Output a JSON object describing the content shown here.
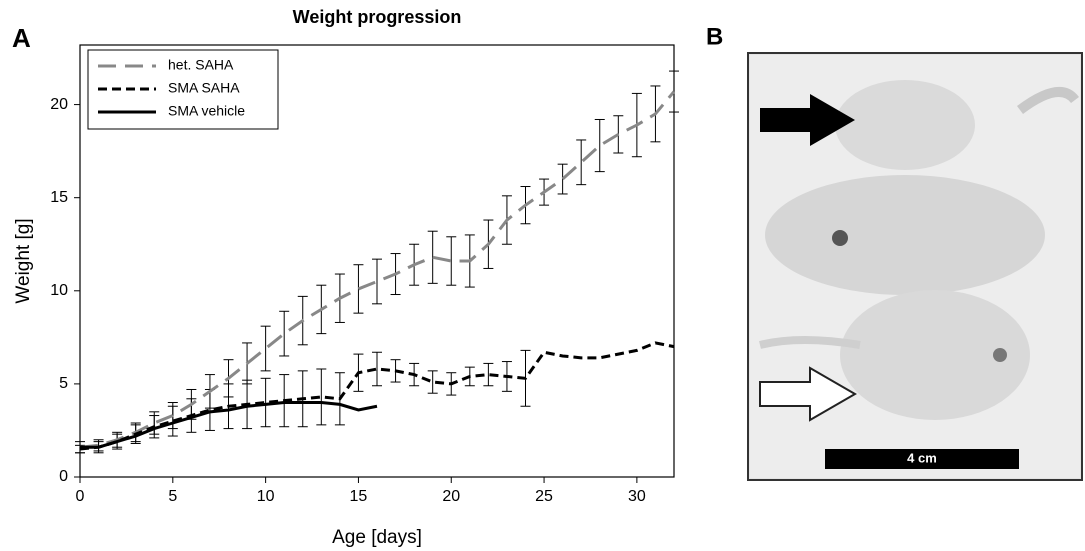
{
  "panel_labels": [
    "A",
    "B"
  ],
  "photo": {
    "scale_label": "4 cm"
  },
  "chart_data": {
    "type": "line",
    "title": "Weight progression",
    "x_label": "Age [days]",
    "y_label": "Weight [g]",
    "xlim": [
      0,
      32
    ],
    "ylim": [
      0,
      23.2
    ],
    "xticks": [
      0,
      5,
      10,
      15,
      20,
      25,
      30
    ],
    "yticks": [
      0,
      5,
      10,
      15,
      20
    ],
    "legend": "top-left",
    "x": [
      0,
      1,
      2,
      3,
      4,
      5,
      6,
      7,
      8,
      9,
      10,
      11,
      12,
      13,
      14,
      15,
      16,
      17,
      18,
      19,
      20,
      21,
      22,
      23,
      24,
      25,
      26,
      27,
      28,
      29,
      30,
      31,
      32
    ],
    "series": [
      {
        "name": "het. SAHA",
        "color": "#888888",
        "dash": "18 9",
        "values": [
          1.6,
          1.7,
          2.0,
          2.4,
          2.9,
          3.3,
          3.9,
          4.6,
          5.3,
          6.1,
          6.9,
          7.7,
          8.4,
          9.0,
          9.6,
          10.1,
          10.5,
          10.9,
          11.4,
          11.8,
          11.6,
          11.6,
          12.5,
          13.8,
          14.6,
          15.3,
          16.0,
          16.9,
          17.8,
          18.4,
          18.9,
          19.5,
          20.7
        ],
        "errors": [
          0.3,
          0.3,
          0.4,
          0.5,
          0.6,
          0.7,
          0.8,
          0.9,
          1.0,
          1.1,
          1.2,
          1.2,
          1.3,
          1.3,
          1.3,
          1.3,
          1.2,
          1.1,
          1.1,
          1.4,
          1.3,
          1.4,
          1.3,
          1.3,
          1.0,
          0.7,
          0.8,
          1.2,
          1.4,
          1.0,
          1.7,
          1.5,
          1.1
        ]
      },
      {
        "name": "SMA SAHA",
        "color": "#000000",
        "dash": "9 5",
        "values": [
          1.5,
          1.6,
          1.9,
          2.3,
          2.7,
          3.0,
          3.3,
          3.6,
          3.8,
          3.9,
          4.0,
          4.1,
          4.2,
          4.3,
          4.2,
          5.6,
          5.8,
          5.7,
          5.5,
          5.1,
          5.0,
          5.4,
          5.5,
          5.4,
          5.3,
          6.7,
          6.5,
          6.4,
          6.4,
          6.6,
          6.8,
          7.2,
          7.0
        ],
        "errors": [
          0.2,
          0.3,
          0.4,
          0.5,
          0.6,
          0.8,
          0.9,
          1.1,
          1.2,
          1.3,
          1.3,
          1.4,
          1.5,
          1.5,
          1.4,
          1.0,
          0.9,
          0.6,
          0.6,
          0.6,
          0.6,
          0.5,
          0.6,
          0.8,
          1.5,
          null,
          null,
          null,
          null,
          null,
          null,
          null,
          null
        ]
      },
      {
        "name": "SMA vehicle",
        "color": "#000000",
        "dash": "none",
        "values": [
          1.6,
          1.6,
          1.9,
          2.2,
          2.6,
          2.9,
          3.2,
          3.5,
          3.6,
          3.8,
          3.9,
          4.0,
          4.0,
          4.0,
          3.9,
          3.6,
          3.8,
          null,
          null,
          null,
          null,
          null,
          null,
          null,
          null,
          null,
          null,
          null,
          null,
          null,
          null,
          null,
          null
        ]
      }
    ]
  }
}
